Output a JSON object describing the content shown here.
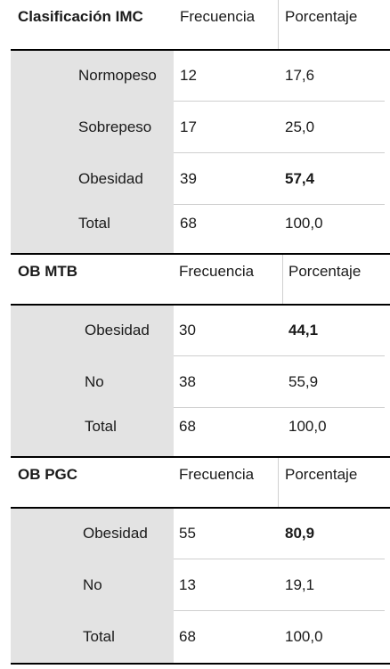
{
  "tables": [
    {
      "title": "Clasificación IMC",
      "col_freq": "Frecuencia",
      "col_pct": "Porcentaje",
      "rows": [
        {
          "label": "Normopeso",
          "freq": "12",
          "pct": "17,6",
          "bold": false
        },
        {
          "label": "Sobrepeso",
          "freq": "17",
          "pct": "25,0",
          "bold": false
        },
        {
          "label": "Obesidad",
          "freq": "39",
          "pct": "57,4",
          "bold": true
        },
        {
          "label": "Total",
          "freq": "68",
          "pct": "100,0",
          "bold": false
        }
      ]
    },
    {
      "title": "OB MTB",
      "col_freq": "Frecuencia",
      "col_pct": "Porcentaje",
      "rows": [
        {
          "label": "Obesidad",
          "freq": "30",
          "pct": "44,1",
          "bold": true
        },
        {
          "label": "No",
          "freq": "38",
          "pct": "55,9",
          "bold": false
        },
        {
          "label": "Total",
          "freq": "68",
          "pct": "100,0",
          "bold": false
        }
      ]
    },
    {
      "title": "OB PGC",
      "col_freq": "Frecuencia",
      "col_pct": "Porcentaje",
      "rows": [
        {
          "label": "Obesidad",
          "freq": "55",
          "pct": "80,9",
          "bold": true
        },
        {
          "label": "No",
          "freq": "13",
          "pct": "19,1",
          "bold": false
        },
        {
          "label": "Total",
          "freq": "68",
          "pct": "100,0",
          "bold": false
        }
      ]
    }
  ]
}
